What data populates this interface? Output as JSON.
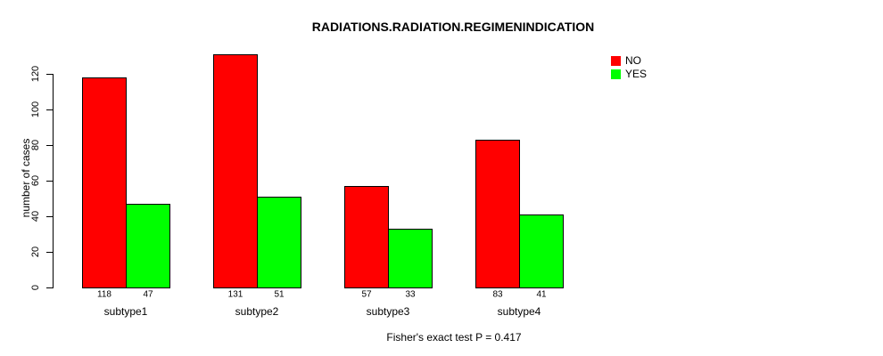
{
  "chart_data": {
    "type": "bar",
    "title": "RADIATIONS.RADIATION.REGIMENINDICATION",
    "ylabel": "number of cases",
    "xlabel": "",
    "footnote": "Fisher's exact test P = 0.417",
    "categories": [
      "subtype1",
      "subtype2",
      "subtype3",
      "subtype4"
    ],
    "series": [
      {
        "name": "NO",
        "color": "#ff0000",
        "values": [
          118,
          131,
          57,
          83
        ]
      },
      {
        "name": "YES",
        "color": "#00ff00",
        "values": [
          47,
          51,
          33,
          41
        ]
      }
    ],
    "bar_value_labels": [
      [
        "118",
        "47"
      ],
      [
        "131",
        "51"
      ],
      [
        "57",
        "33"
      ],
      [
        "83",
        "41"
      ]
    ],
    "yticks": [
      0,
      20,
      40,
      60,
      80,
      100,
      120
    ],
    "ylim": [
      0,
      131
    ],
    "grid": false,
    "legend_position": "top-right",
    "axis_color": "#000000",
    "background_color": "#ffffff"
  }
}
